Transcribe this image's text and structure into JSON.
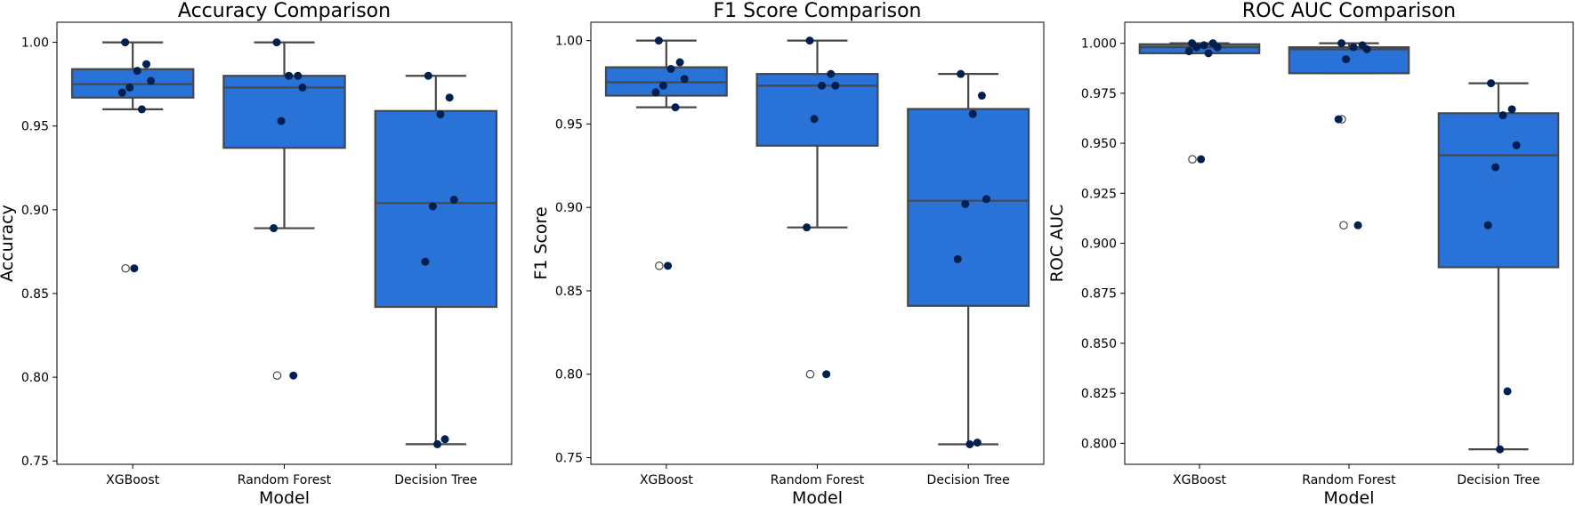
{
  "figure": {
    "background": "#ffffff"
  },
  "style": {
    "box_fill": "#2872d8",
    "box_edge": "#474747",
    "point_color": "#002050",
    "outlier_fill": "#ffffff"
  },
  "chart_data": [
    {
      "type": "box",
      "title": "Accuracy Comparison",
      "xlabel": "Model",
      "ylabel": "Accuracy",
      "categories": [
        "XGBoost",
        "Random Forest",
        "Decision Tree"
      ],
      "ylim": [
        0.748,
        1.012
      ],
      "yticks": [
        0.75,
        0.8,
        0.85,
        0.9,
        0.95,
        1.0
      ],
      "ytick_labels": [
        "0.75",
        "0.80",
        "0.85",
        "0.90",
        "0.95",
        "1.00"
      ],
      "boxes": [
        {
          "q1": 0.967,
          "median": 0.975,
          "q3": 0.984,
          "whisker_low": 0.96,
          "whisker_high": 1.0,
          "outliers": [
            0.865
          ]
        },
        {
          "q1": 0.937,
          "median": 0.973,
          "q3": 0.98,
          "whisker_low": 0.889,
          "whisker_high": 1.0,
          "outliers": [
            0.801
          ]
        },
        {
          "q1": 0.842,
          "median": 0.904,
          "q3": 0.959,
          "whisker_low": 0.76,
          "whisker_high": 0.98,
          "outliers": []
        }
      ],
      "points": [
        [
          1.0,
          0.987,
          0.983,
          0.977,
          0.973,
          0.97,
          0.96,
          0.865
        ],
        [
          1.0,
          0.98,
          0.98,
          0.973,
          0.953,
          0.889,
          0.801
        ],
        [
          0.98,
          0.967,
          0.957,
          0.906,
          0.902,
          0.869,
          0.763,
          0.76
        ]
      ]
    },
    {
      "type": "box",
      "title": "F1 Score Comparison",
      "xlabel": "Model",
      "ylabel": "F1 Score",
      "categories": [
        "XGBoost",
        "Random Forest",
        "Decision Tree"
      ],
      "ylim": [
        0.746,
        1.011
      ],
      "yticks": [
        0.75,
        0.8,
        0.85,
        0.9,
        0.95,
        1.0
      ],
      "ytick_labels": [
        "0.75",
        "0.80",
        "0.85",
        "0.90",
        "0.95",
        "1.00"
      ],
      "boxes": [
        {
          "q1": 0.967,
          "median": 0.975,
          "q3": 0.984,
          "whisker_low": 0.96,
          "whisker_high": 1.0,
          "outliers": [
            0.865
          ]
        },
        {
          "q1": 0.937,
          "median": 0.973,
          "q3": 0.98,
          "whisker_low": 0.888,
          "whisker_high": 1.0,
          "outliers": [
            0.8
          ]
        },
        {
          "q1": 0.841,
          "median": 0.904,
          "q3": 0.959,
          "whisker_low": 0.758,
          "whisker_high": 0.98,
          "outliers": []
        }
      ],
      "points": [
        [
          1.0,
          0.987,
          0.983,
          0.977,
          0.973,
          0.969,
          0.96,
          0.865
        ],
        [
          1.0,
          0.98,
          0.973,
          0.973,
          0.953,
          0.888,
          0.8
        ],
        [
          0.98,
          0.967,
          0.956,
          0.905,
          0.902,
          0.869,
          0.759,
          0.758
        ]
      ]
    },
    {
      "type": "box",
      "title": "ROC AUC Comparison",
      "xlabel": "Model",
      "ylabel": "ROC AUC",
      "categories": [
        "XGBoost",
        "Random Forest",
        "Decision Tree"
      ],
      "ylim": [
        0.7895,
        1.0105
      ],
      "yticks": [
        0.8,
        0.825,
        0.85,
        0.875,
        0.9,
        0.925,
        0.95,
        0.975,
        1.0
      ],
      "ytick_labels": [
        "0.800",
        "0.825",
        "0.850",
        "0.875",
        "0.900",
        "0.925",
        "0.950",
        "0.975",
        "1.000"
      ],
      "boxes": [
        {
          "q1": 0.995,
          "median": 0.998,
          "q3": 0.9995,
          "whisker_low": 0.995,
          "whisker_high": 1.0,
          "outliers": [
            0.942
          ]
        },
        {
          "q1": 0.985,
          "median": 0.997,
          "q3": 0.998,
          "whisker_low": 0.985,
          "whisker_high": 1.0,
          "outliers": [
            0.962,
            0.909
          ]
        },
        {
          "q1": 0.888,
          "median": 0.944,
          "q3": 0.965,
          "whisker_low": 0.797,
          "whisker_high": 0.98,
          "outliers": []
        }
      ],
      "points": [
        [
          1.0,
          1.0,
          0.999,
          0.998,
          0.998,
          0.996,
          0.995,
          0.942
        ],
        [
          1.0,
          0.999,
          0.998,
          0.997,
          0.992,
          0.962,
          0.909
        ],
        [
          0.98,
          0.967,
          0.964,
          0.949,
          0.938,
          0.909,
          0.826,
          0.797
        ]
      ]
    }
  ]
}
